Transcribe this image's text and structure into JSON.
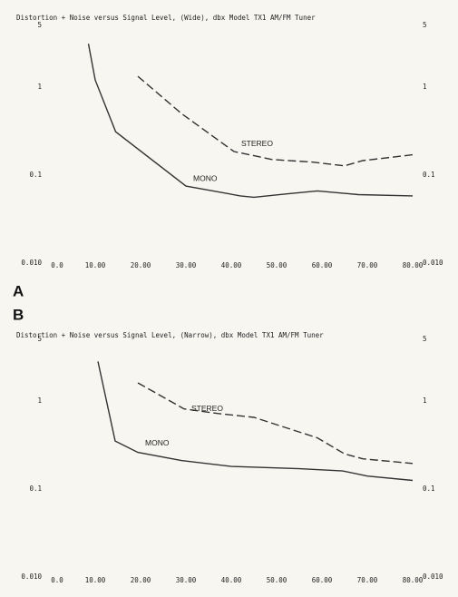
{
  "chart_data": [
    {
      "type": "line",
      "panel_label": "A",
      "title": "Distortion + Noise versus Signal Level, (Wide), dbx Model TX1 AM/FM Tuner",
      "log_y": true,
      "grid": false,
      "xlim": [
        0,
        80
      ],
      "xticks": [
        {
          "value": 0,
          "label": "0.0"
        },
        {
          "value": 10,
          "label": "10.00"
        },
        {
          "value": 20,
          "label": "20.00"
        },
        {
          "value": 30,
          "label": "30.00"
        },
        {
          "value": 40,
          "label": "40.00"
        },
        {
          "value": 50,
          "label": "50.00"
        },
        {
          "value": 60,
          "label": "60.00"
        },
        {
          "value": 70,
          "label": "70.00"
        },
        {
          "value": 80,
          "label": "80.00"
        }
      ],
      "ylim": [
        0.01,
        5
      ],
      "yticks": [
        5,
        1,
        0.1,
        {
          "value": 0.01,
          "label": "0.010"
        }
      ],
      "y2lim": [
        0.01,
        5
      ],
      "y2ticks": [
        5,
        1,
        0.1,
        {
          "value": 0.01,
          "label": "0.010"
        }
      ],
      "series": [
        {
          "name": "MONO",
          "color": "#333333",
          "style": "solid",
          "x": [
            8.5,
            10,
            14.5,
            30,
            42,
            45,
            52,
            59,
            68,
            80
          ],
          "values": [
            3.1,
            1.2,
            0.31,
            0.075,
            0.058,
            0.056,
            0.061,
            0.066,
            0.06,
            0.058
          ]
        },
        {
          "name": "STEREO",
          "color": "#333333",
          "style": "dashed",
          "x": [
            19.4,
            29,
            40.6,
            49,
            58,
            65,
            69,
            80
          ],
          "values": [
            1.32,
            0.5,
            0.185,
            0.15,
            0.14,
            0.127,
            0.146,
            0.17
          ]
        }
      ]
    },
    {
      "type": "line",
      "panel_label": "B",
      "title": "Distortion + Noise versus Signal Level, (Narrow), dbx Model TX1 AM/FM Tuner",
      "log_y": true,
      "grid": false,
      "xlim": [
        0,
        80
      ],
      "xticks": [
        {
          "value": 0,
          "label": "0.0"
        },
        {
          "value": 10,
          "label": "10.00"
        },
        {
          "value": 20,
          "label": "20.00"
        },
        {
          "value": 30,
          "label": "30.00"
        },
        {
          "value": 40,
          "label": "40.00"
        },
        {
          "value": 50,
          "label": "50.00"
        },
        {
          "value": 60,
          "label": "60.00"
        },
        {
          "value": 70,
          "label": "70.00"
        },
        {
          "value": 80,
          "label": "80.00"
        }
      ],
      "ylim": [
        0.01,
        5
      ],
      "yticks": [
        5,
        1,
        0.1,
        {
          "value": 0.01,
          "label": "0.010"
        }
      ],
      "y2lim": [
        0.01,
        5
      ],
      "y2ticks": [
        5,
        1,
        0.1,
        {
          "value": 0.01,
          "label": "0.010"
        }
      ],
      "series": [
        {
          "name": "MONO",
          "color": "#333333",
          "style": "solid",
          "x": [
            10.6,
            14.4,
            19.4,
            29,
            40,
            55,
            64.6,
            70,
            80
          ],
          "values": [
            2.8,
            0.35,
            0.26,
            0.21,
            0.18,
            0.17,
            0.16,
            0.14,
            0.125
          ]
        },
        {
          "name": "STEREO",
          "color": "#333333",
          "style": "dashed",
          "x": [
            19.4,
            29.6,
            37,
            45,
            59,
            65,
            69,
            80
          ],
          "values": [
            1.6,
            0.81,
            0.72,
            0.65,
            0.38,
            0.25,
            0.22,
            0.195
          ]
        }
      ]
    }
  ]
}
